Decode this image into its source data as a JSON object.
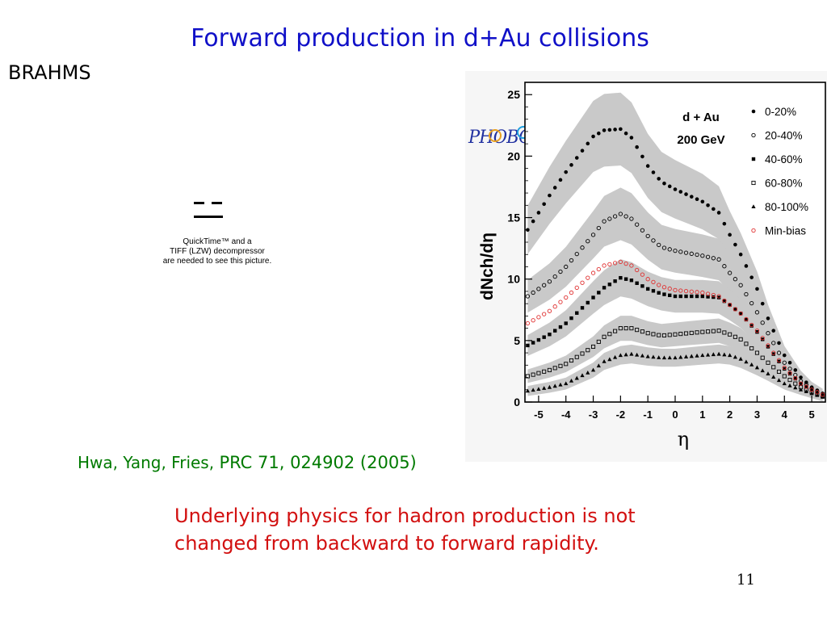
{
  "slide": {
    "title": "Forward production in d+Au collisions",
    "subtitle": "BRAHMS",
    "placeholder_lines": [
      "QuickTime™ and a",
      "TIFF (LZW) decompressor",
      "are needed to see this picture."
    ],
    "reference_authors": "Hwa, Yang, Fries,",
    "reference_journal": "PRC 71, 024902 (2005)",
    "conclusion": "Underlying physics for hadron production is not changed from backward to forward rapidity.",
    "slide_number": "11",
    "logo_text": "PHOBOS",
    "colors": {
      "title": "#1010c8",
      "reference": "#007a00",
      "conclusion": "#d21010",
      "minbias_markers": "#e03030",
      "error_bands": "#c9c9c9"
    }
  },
  "chart_data": {
    "type": "scatter",
    "annotation_lines": [
      "d + Au",
      "200 GeV"
    ],
    "xlabel": "η",
    "ylabel": "dNch/dη",
    "xlim": [
      -5.5,
      5.5
    ],
    "ylim": [
      0,
      26
    ],
    "x_ticks": [
      "-5",
      "-4",
      "-3",
      "-2",
      "-1",
      "0",
      "1",
      "2",
      "3",
      "4",
      "5"
    ],
    "y_ticks": [
      "0",
      "5",
      "10",
      "15",
      "20",
      "25"
    ],
    "legend_position": "top-right",
    "series": [
      {
        "name": "0-20%",
        "marker": "filled-circle",
        "color": "#000000",
        "x": [
          -5.4,
          -4.6,
          -4.0,
          -3.0,
          -2.6,
          -2.0,
          -1.6,
          -1.0,
          -0.5,
          0,
          0.5,
          1.0,
          1.6,
          2.0,
          2.4,
          3.0,
          3.4,
          4.0,
          4.6,
          5.0,
          5.4
        ],
        "y": [
          14.0,
          16.8,
          18.7,
          21.6,
          22.1,
          22.2,
          21.5,
          19.2,
          17.9,
          17.3,
          16.8,
          16.3,
          15.4,
          13.6,
          12.0,
          9.2,
          6.8,
          3.8,
          2.0,
          1.2,
          0.7
        ]
      },
      {
        "name": "20-40%",
        "marker": "open-circle",
        "color": "#000000",
        "x": [
          -5.4,
          -4.6,
          -4.0,
          -3.0,
          -2.6,
          -2.0,
          -1.6,
          -1.0,
          -0.5,
          0,
          0.5,
          1.0,
          1.6,
          2.0,
          2.4,
          3.0,
          3.4,
          4.0,
          4.6,
          5.0,
          5.4
        ],
        "y": [
          8.6,
          9.8,
          11.0,
          13.6,
          14.7,
          15.3,
          14.9,
          13.5,
          12.6,
          12.3,
          12.1,
          11.9,
          11.6,
          10.5,
          9.5,
          7.3,
          5.6,
          3.2,
          1.7,
          1.1,
          0.6
        ]
      },
      {
        "name": "40-60%",
        "marker": "filled-square",
        "color": "#000000",
        "x": [
          -5.4,
          -4.6,
          -4.0,
          -3.0,
          -2.6,
          -2.0,
          -1.6,
          -1.0,
          -0.5,
          0,
          0.5,
          1.0,
          1.6,
          2.0,
          2.4,
          3.0,
          3.4,
          4.0,
          4.6,
          5.0,
          5.4
        ],
        "y": [
          4.6,
          5.5,
          6.4,
          8.5,
          9.3,
          10.1,
          9.9,
          9.2,
          8.8,
          8.6,
          8.6,
          8.6,
          8.5,
          7.9,
          7.2,
          5.7,
          4.5,
          2.7,
          1.5,
          1.0,
          0.6
        ]
      },
      {
        "name": "60-80%",
        "marker": "open-square",
        "color": "#000000",
        "x": [
          -5.4,
          -4.6,
          -4.0,
          -3.0,
          -2.6,
          -2.0,
          -1.6,
          -1.0,
          -0.5,
          0,
          0.5,
          1.0,
          1.6,
          2.0,
          2.4,
          3.0,
          3.4,
          4.0,
          4.6,
          5.0,
          5.4
        ],
        "y": [
          2.1,
          2.6,
          3.1,
          4.5,
          5.3,
          6.0,
          6.0,
          5.6,
          5.4,
          5.5,
          5.6,
          5.7,
          5.8,
          5.5,
          5.1,
          4.0,
          3.2,
          2.1,
          1.2,
          0.8,
          0.5
        ]
      },
      {
        "name": "80-100%",
        "marker": "filled-triangle",
        "color": "#000000",
        "x": [
          -5.4,
          -4.6,
          -4.0,
          -3.0,
          -2.6,
          -2.0,
          -1.6,
          -1.0,
          -0.5,
          0,
          0.5,
          1.0,
          1.6,
          2.0,
          2.4,
          3.0,
          3.4,
          4.0,
          4.6,
          5.0,
          5.4
        ],
        "y": [
          0.9,
          1.2,
          1.5,
          2.6,
          3.3,
          3.8,
          3.9,
          3.7,
          3.6,
          3.6,
          3.7,
          3.8,
          3.9,
          3.8,
          3.5,
          2.8,
          2.3,
          1.5,
          1.0,
          0.7,
          0.4
        ]
      },
      {
        "name": "Min-bias",
        "marker": "open-circle",
        "color": "#e03030",
        "x": [
          -5.4,
          -4.6,
          -4.0,
          -3.0,
          -2.6,
          -2.0,
          -1.6,
          -1.0,
          -0.5,
          0,
          0.5,
          1.0,
          1.6,
          2.0,
          2.4,
          3.0,
          3.4,
          4.0,
          4.6,
          5.0,
          5.4
        ],
        "y": [
          6.4,
          7.4,
          8.5,
          10.5,
          11.1,
          11.4,
          11.1,
          10.0,
          9.4,
          9.1,
          9.0,
          8.9,
          8.6,
          7.9,
          7.2,
          5.8,
          4.6,
          2.8,
          1.5,
          1.0,
          0.6
        ]
      }
    ]
  }
}
